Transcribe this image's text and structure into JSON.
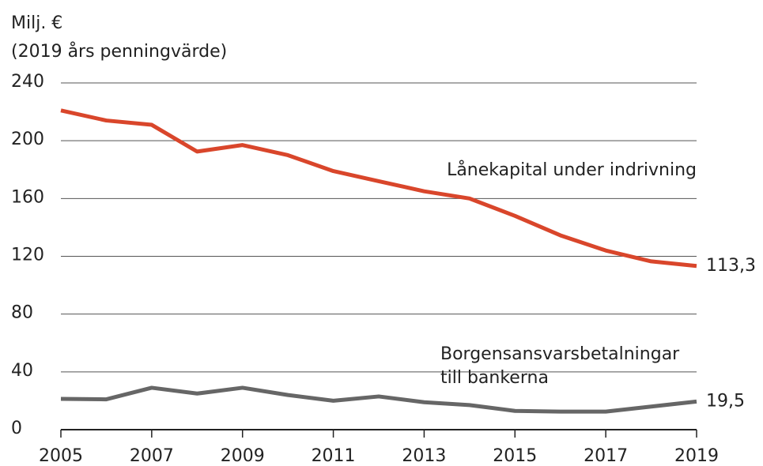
{
  "chart_data": {
    "type": "line",
    "ylabel": [
      "Milj. €",
      "(2019 års penningvärde)"
    ],
    "x": [
      2005,
      2006,
      2007,
      2008,
      2009,
      2010,
      2011,
      2012,
      2013,
      2014,
      2015,
      2016,
      2017,
      2018,
      2019
    ],
    "series": [
      {
        "name": "Lånekapital under indrivning",
        "color": "#d9462b",
        "values": [
          221,
          214,
          211,
          192.5,
          197,
          190,
          179,
          172,
          165,
          160,
          148,
          134.5,
          124,
          116.5,
          113.3
        ],
        "value_labels": [
          null,
          null,
          null,
          null,
          null,
          null,
          null,
          null,
          null,
          null,
          null,
          null,
          null,
          null,
          "113,3"
        ]
      },
      {
        "name": "Borgensansvarsbetalningar till bankerna",
        "color": "#666666",
        "values": [
          21.3,
          21,
          29,
          25,
          29,
          24,
          20,
          23,
          19,
          17,
          13,
          12.5,
          12.5,
          16,
          19.5
        ],
        "value_labels": [
          null,
          null,
          null,
          null,
          null,
          null,
          null,
          null,
          null,
          null,
          null,
          null,
          null,
          null,
          "19,5"
        ]
      }
    ],
    "xlim": [
      2005,
      2019
    ],
    "xticks": [
      2005,
      2007,
      2009,
      2011,
      2013,
      2015,
      2017,
      2019
    ],
    "ylim": [
      0,
      240
    ],
    "yticks": [
      0,
      40,
      80,
      120,
      160,
      200,
      240
    ],
    "grid": true
  }
}
